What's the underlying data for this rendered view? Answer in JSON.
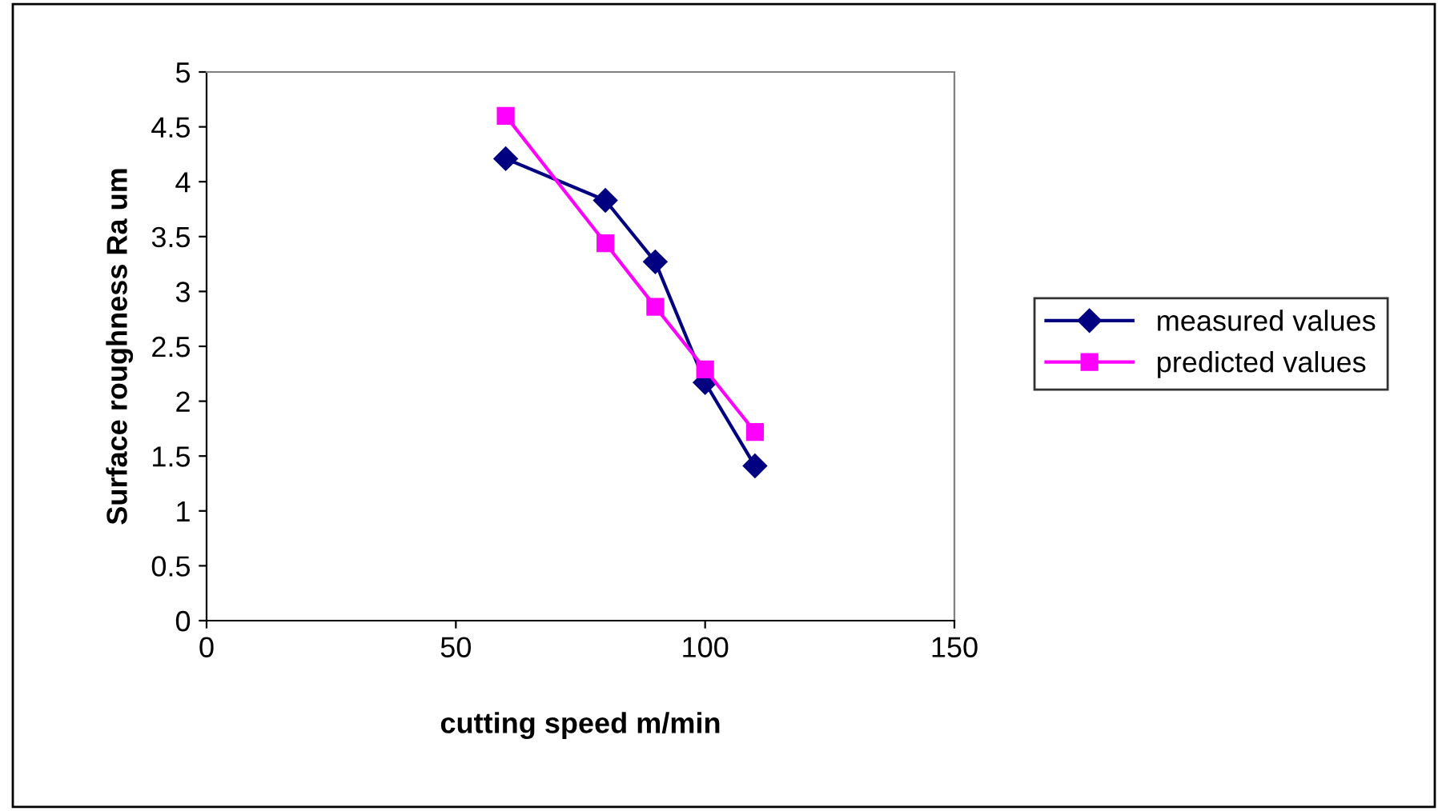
{
  "chart_data": {
    "type": "line",
    "xlabel": "cutting speed m/min",
    "ylabel": "Surface roughness Ra um",
    "x": [
      60,
      80,
      90,
      100,
      110
    ],
    "series": [
      {
        "name": "measured values",
        "color": "#000080",
        "marker": "diamond",
        "values": [
          4.21,
          3.83,
          3.27,
          2.17,
          1.41
        ]
      },
      {
        "name": "predicted values",
        "color": "#ff00ff",
        "marker": "square",
        "values": [
          4.6,
          3.44,
          2.86,
          2.29,
          1.72
        ]
      }
    ],
    "xlim": [
      0,
      150
    ],
    "xticks": [
      0,
      50,
      100,
      150
    ],
    "ylim": [
      0,
      5
    ],
    "yticks": [
      0,
      0.5,
      1,
      1.5,
      2,
      2.5,
      3,
      3.5,
      4,
      4.5,
      5
    ],
    "grid": false,
    "legend": "right"
  }
}
